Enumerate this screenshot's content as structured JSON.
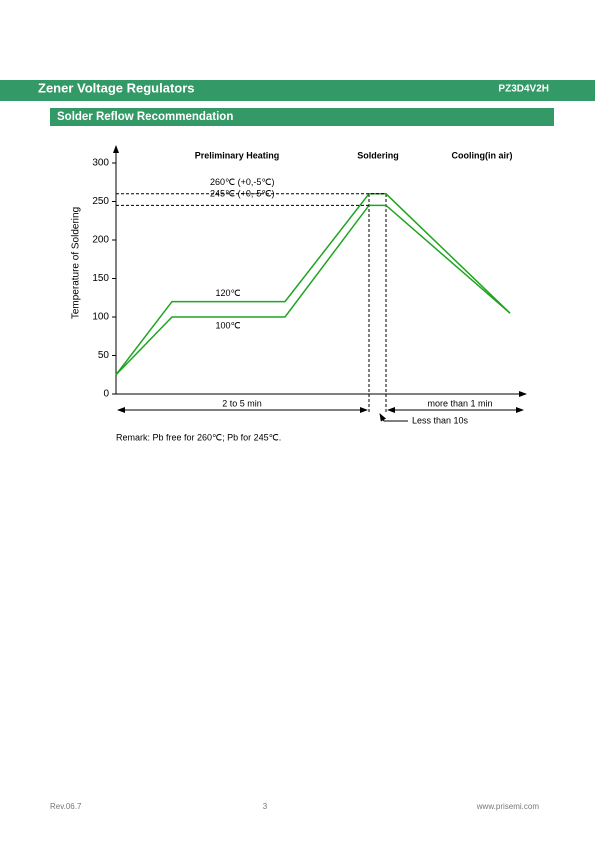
{
  "header": {
    "title": "Zener Voltage Regulators",
    "part": "PZ3D4V2H"
  },
  "section": {
    "title": "Solder Reflow Recommendation"
  },
  "chart_data": {
    "type": "line",
    "ylabel": "Temperature of Soldering",
    "ylim": [
      0,
      300
    ],
    "yticks": [
      0,
      50,
      100,
      150,
      200,
      250,
      300
    ],
    "categories": [
      null,
      null,
      null,
      null,
      null,
      null
    ],
    "series": [
      {
        "color": "#1fa51f",
        "values": [
          25,
          120,
          120,
          260,
          260,
          105
        ]
      },
      {
        "color": "#1fa51f",
        "values": [
          25,
          100,
          100,
          245,
          245,
          105
        ]
      }
    ],
    "ref_lines": [
      {
        "value": 260,
        "label": "260℃  (+0,-5℃)"
      },
      {
        "value": 245,
        "label": "245℃  (+0,-5℃)"
      }
    ],
    "plateau_labels": [
      "120℃",
      "100℃"
    ],
    "phases": [
      "Preliminary Heating",
      "Soldering",
      "Cooling(in  air)"
    ],
    "durations": [
      "2 to 5 min",
      "more than 1 min",
      "Less than 10s"
    ],
    "remark": "Remark: Pb free for 260℃;  Pb for 245℃."
  },
  "footer": {
    "rev": "Rev.06.7",
    "page": "3",
    "site": "www.prisemi.com"
  }
}
